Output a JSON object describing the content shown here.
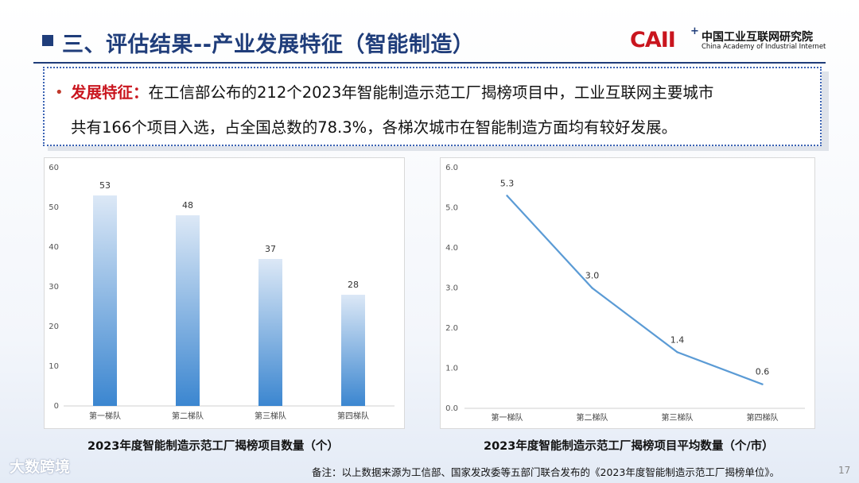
{
  "header": {
    "title": "三、评估结果--产业发展特征（智能制造）",
    "logo_mark": "CAII",
    "logo_cn": "中国工业互联网研究院",
    "logo_en": "China Academy of Industrial Internet"
  },
  "callout": {
    "highlight": "发展特征：",
    "line1_rest": "在工信部公布的212个2023年智能制造示范工厂揭榜项目中，工业互联网主要城市",
    "line2": "共有166个项目入选，占全国总数的78.3%，各梯次城市在智能制造方面均有较好发展。"
  },
  "chart_data": [
    {
      "type": "bar",
      "title": "2023年度智能制造示范工厂揭榜项目数量（个）",
      "categories": [
        "第一梯队",
        "第二梯队",
        "第三梯队",
        "第四梯队"
      ],
      "values": [
        53,
        48,
        37,
        28
      ],
      "ylim": [
        0,
        60
      ],
      "yticks": [
        "0",
        "10",
        "20",
        "30",
        "40",
        "50",
        "60"
      ],
      "grid": false,
      "colors": {
        "top": "#dce8f6",
        "bottom": "#3b86d0"
      }
    },
    {
      "type": "line",
      "title": "2023年度智能制造示范工厂揭榜项目平均数量（个/市）",
      "categories": [
        "第一梯队",
        "第二梯队",
        "第三梯队",
        "第四梯队"
      ],
      "values": [
        5.3,
        3.0,
        1.4,
        0.6
      ],
      "labels": [
        "5.3",
        "3.0",
        "1.4",
        "0.6"
      ],
      "ylim": [
        0,
        6
      ],
      "yticks": [
        "0.0",
        "1.0",
        "2.0",
        "3.0",
        "4.0",
        "5.0",
        "6.0"
      ],
      "grid": false,
      "colors": {
        "line": "#5b9bd5"
      }
    }
  ],
  "footnote": "备注：以上数据来源为工信部、国家发改委等五部门联合发布的《2023年度智能制造示范工厂揭榜单位》。",
  "page_number": "17",
  "watermark": "大数跨境"
}
